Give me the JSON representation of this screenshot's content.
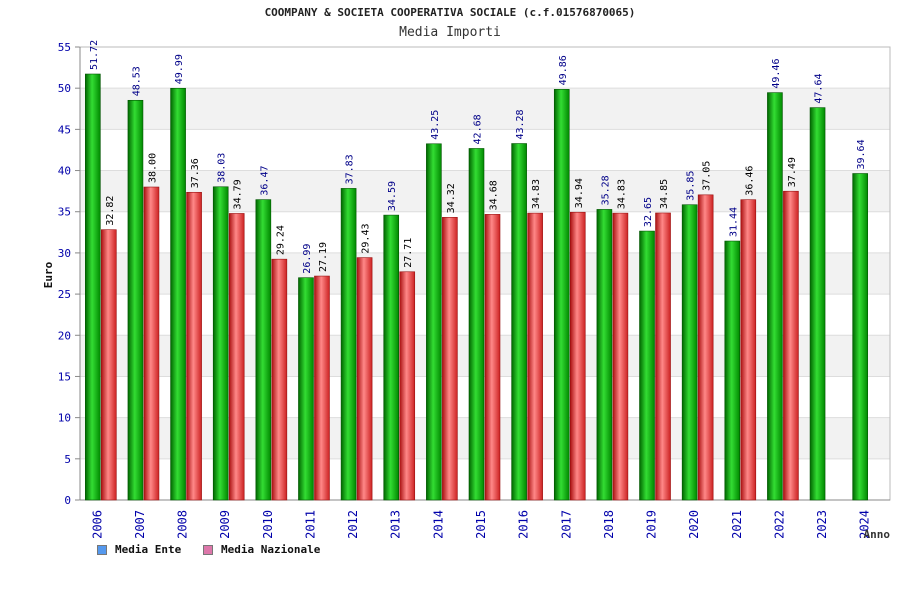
{
  "chart_data": {
    "type": "bar",
    "title": "COOMPANY & SOCIETA COOPERATIVA SOCIALE (c.f.01576870065)",
    "subtitle": "Media Importi",
    "ylabel": "Euro",
    "xlabel": "Anno",
    "ylim": [
      0,
      55
    ],
    "yticks": [
      0,
      5,
      10,
      15,
      20,
      25,
      30,
      35,
      40,
      45,
      50,
      55
    ],
    "grid": true,
    "legend_position": "bottom-left",
    "categories": [
      "2006",
      "2007",
      "2008",
      "2009",
      "2010",
      "2011",
      "2012",
      "2013",
      "2014",
      "2015",
      "2016",
      "2017",
      "2018",
      "2019",
      "2020",
      "2021",
      "2022",
      "2023",
      "2024"
    ],
    "series": [
      {
        "name": "Media Ente",
        "color": "#00aa00",
        "legend_color": "#5599ee",
        "values": [
          51.72,
          48.53,
          49.99,
          38.03,
          36.47,
          26.99,
          37.83,
          34.59,
          43.25,
          42.68,
          43.28,
          49.86,
          35.28,
          32.65,
          35.85,
          31.44,
          49.46,
          47.64,
          39.64
        ],
        "labels": [
          "51.72",
          "48.53",
          "49.99",
          "38.03",
          "36.47",
          "26.99",
          "37.83",
          "34.59",
          "43.25",
          "42.68",
          "43.28",
          "49.86",
          "35.28",
          "32.65",
          "35.85",
          "31.44",
          "49.46",
          "47.64",
          "39.64"
        ]
      },
      {
        "name": "Media Nazionale",
        "color": "#dd2222",
        "legend_color": "#dd77aa",
        "values": [
          32.82,
          38.0,
          37.36,
          34.79,
          29.24,
          27.19,
          29.43,
          27.71,
          34.32,
          34.68,
          34.83,
          34.94,
          34.83,
          34.85,
          37.05,
          36.46,
          37.49,
          null,
          null
        ],
        "labels": [
          "32.82",
          "38.00",
          "37.36",
          "34.79",
          "29.24",
          "27.19",
          "29.43",
          "27.71",
          "34.32",
          "34.68",
          "34.83",
          "34.94",
          "34.83",
          "34.85",
          "37.05",
          "36.46",
          "37.49",
          null,
          null
        ]
      }
    ]
  }
}
